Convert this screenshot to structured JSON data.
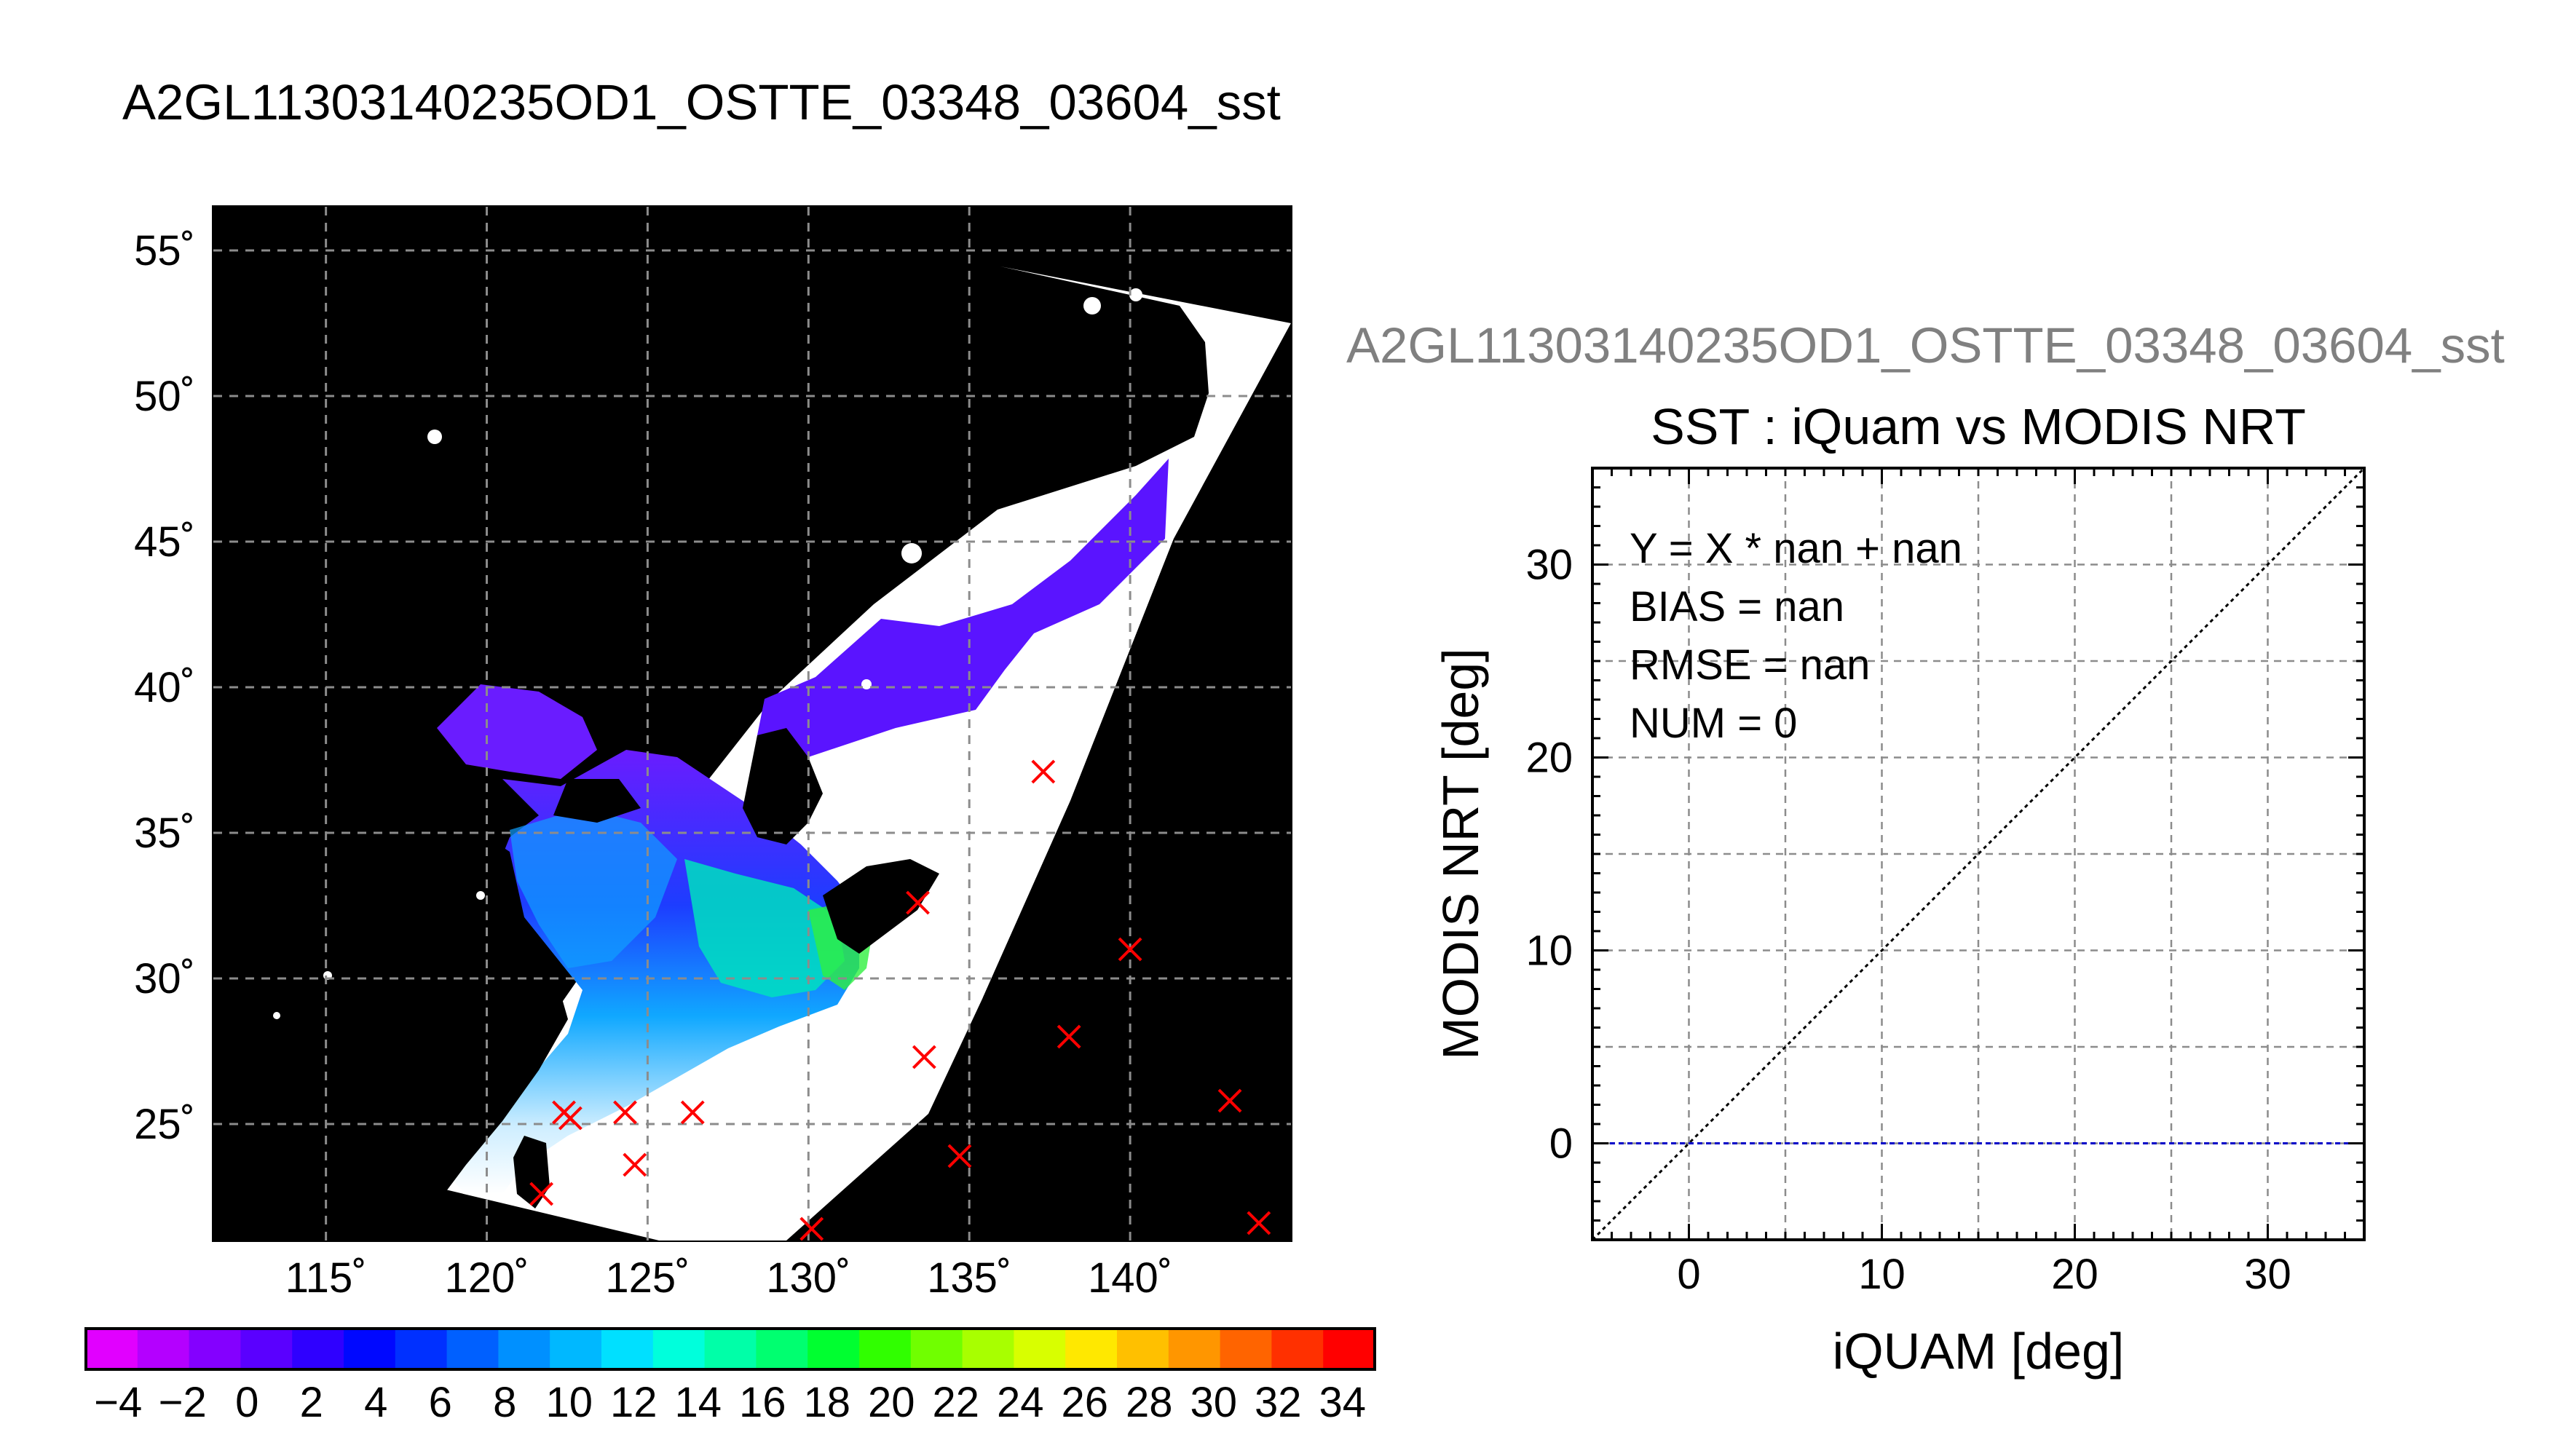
{
  "figure": {
    "title": "A2GL11303140235OD1_OSTTE_03348_03604_sst",
    "subtitle": "A2GL11303140235OD1_OSTTE_03348_03604_sst"
  },
  "map": {
    "lon_ticks": [
      "115˚",
      "120˚",
      "125˚",
      "130˚",
      "135˚",
      "140˚"
    ],
    "lat_ticks": [
      "55˚",
      "50˚",
      "45˚",
      "40˚",
      "35˚",
      "30˚",
      "25˚"
    ],
    "lon_range": [
      111.5,
      145.0
    ],
    "lat_range": [
      21.0,
      56.5
    ],
    "grid": true,
    "background": "#000000",
    "marker_color": "#ff0000",
    "markers": [
      {
        "lon": 137.3,
        "lat": 37.1
      },
      {
        "lon": 133.4,
        "lat": 32.6
      },
      {
        "lon": 140.0,
        "lat": 31.0
      },
      {
        "lon": 138.1,
        "lat": 28.0
      },
      {
        "lon": 133.6,
        "lat": 27.3
      },
      {
        "lon": 143.1,
        "lat": 25.8
      },
      {
        "lon": 134.7,
        "lat": 23.9
      },
      {
        "lon": 130.1,
        "lat": 21.4
      },
      {
        "lon": 144.0,
        "lat": 21.6
      },
      {
        "lon": 122.4,
        "lat": 25.4
      },
      {
        "lon": 122.6,
        "lat": 25.2
      },
      {
        "lon": 124.3,
        "lat": 25.4
      },
      {
        "lon": 126.4,
        "lat": 25.4
      },
      {
        "lon": 124.6,
        "lat": 23.6
      },
      {
        "lon": 121.7,
        "lat": 22.6
      }
    ]
  },
  "colorbar": {
    "labels": [
      "−4",
      "−2",
      "0",
      "2",
      "4",
      "6",
      "8",
      "10",
      "12",
      "14",
      "16",
      "18",
      "20",
      "22",
      "24",
      "26",
      "28",
      "30",
      "32",
      "34"
    ],
    "range": [
      -5,
      35
    ],
    "colors": [
      "#e100ff",
      "#b400ff",
      "#8400ff",
      "#5a00ff",
      "#2f00ff",
      "#0008ff",
      "#0030ff",
      "#0060ff",
      "#0090ff",
      "#00b8ff",
      "#00e0ff",
      "#00ffdc",
      "#00ffa8",
      "#00ff70",
      "#00ff30",
      "#30ff00",
      "#70ff00",
      "#a8ff00",
      "#d8ff00",
      "#ffe800",
      "#ffc000",
      "#ff9600",
      "#ff6400",
      "#ff3000",
      "#ff0000"
    ]
  },
  "chart_data": {
    "type": "scatter",
    "title": "SST : iQuam vs MODIS NRT",
    "xlabel": "iQUAM [deg]",
    "ylabel": "MODIS NRT [deg]",
    "xlim": [
      -5,
      35
    ],
    "ylim": [
      -5,
      35
    ],
    "xticks": [
      0,
      10,
      20,
      30
    ],
    "yticks": [
      0,
      10,
      20,
      30
    ],
    "grid": true,
    "series": [],
    "reference_lines": [
      {
        "type": "diagonal",
        "from": [
          -5,
          -5
        ],
        "to": [
          35,
          35
        ],
        "color": "#000000",
        "style": "dotted"
      },
      {
        "type": "horizontal",
        "y": 0,
        "color": "#0000c8",
        "style": "dashed"
      }
    ],
    "annotations": [
      "Y = X * nan + nan",
      "BIAS = nan",
      "RMSE = nan",
      "NUM = 0"
    ]
  }
}
